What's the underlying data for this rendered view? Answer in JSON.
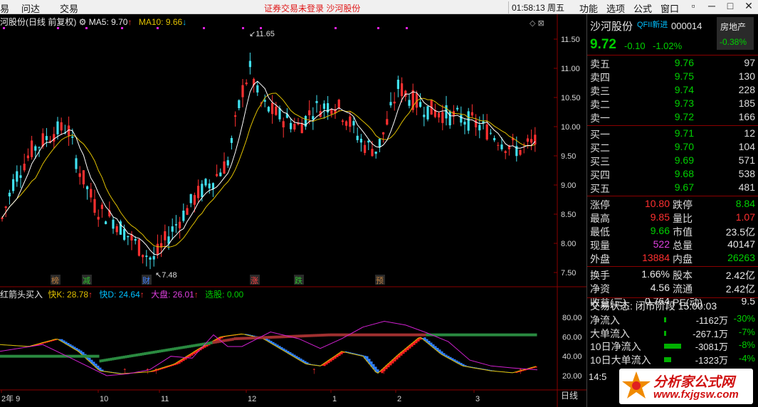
{
  "menu": {
    "items": [
      "问达",
      "交易",
      "功能",
      "选项",
      "公式",
      "窗口"
    ],
    "notice": "证券交易未登录 沙河股份",
    "clock": "01:58:13 周五",
    "win": [
      "▫",
      "─",
      "□",
      "✕"
    ]
  },
  "infobar": {
    "title": "河股份(日线 前复权)",
    "ma5": "MA5: 9.70",
    "ma10": "MA10: 9.66"
  },
  "chart_data": [
    {
      "type": "candlestick",
      "title": "",
      "ylim": [
        7.25,
        11.75
      ],
      "yticks": [
        "11.50",
        "11.00",
        "10.50",
        "10.00",
        "9.50",
        "9.00",
        "8.50",
        "8.00",
        "7.50"
      ],
      "annotations": {
        "high": "11.65",
        "low": "7.48"
      },
      "markers": [
        "榜",
        "减",
        "财",
        "涨",
        "跌",
        "预"
      ],
      "series": [
        {
          "name": "MA5",
          "color": "#ffffff"
        },
        {
          "name": "MA10",
          "color": "#e0c000"
        }
      ]
    },
    {
      "type": "line",
      "title": "",
      "ylim": [
        0,
        100
      ],
      "yticks": [
        "80.00",
        "60.00",
        "40.00",
        "20.00"
      ],
      "series": [
        {
          "name": "快K",
          "value": "28.78"
        },
        {
          "name": "快D",
          "value": "24.64"
        },
        {
          "name": "大盘",
          "value": "26.01"
        },
        {
          "name": "选股",
          "value": "0.00"
        }
      ]
    }
  ],
  "indbar": {
    "title": "红箭头买入",
    "k": "快K: 28.78",
    "d": "快D: 24.64",
    "dp": "大盘: 26.01",
    "xg": "选股: 0.00"
  },
  "xaxis": {
    "labels": [
      "2年 9",
      "10",
      "11",
      "12",
      "1",
      "2",
      "3"
    ],
    "period": "日线"
  },
  "quote": {
    "name": "沙河股份",
    "tag": "QFII新进",
    "code": "000014",
    "sector": "房地产",
    "sector_chg": "-0.38%",
    "price": "9.72",
    "chg": "-0.10",
    "pct": "-1.02%",
    "asks": [
      {
        "k": "卖五",
        "p": "9.76",
        "v": "97"
      },
      {
        "k": "卖四",
        "p": "9.75",
        "v": "130"
      },
      {
        "k": "卖三",
        "p": "9.74",
        "v": "228"
      },
      {
        "k": "卖二",
        "p": "9.73",
        "v": "185"
      },
      {
        "k": "卖一",
        "p": "9.72",
        "v": "166"
      }
    ],
    "bids": [
      {
        "k": "买一",
        "p": "9.71",
        "v": "12"
      },
      {
        "k": "买二",
        "p": "9.70",
        "v": "104"
      },
      {
        "k": "买三",
        "p": "9.69",
        "v": "571"
      },
      {
        "k": "买四",
        "p": "9.68",
        "v": "538"
      },
      {
        "k": "买五",
        "p": "9.67",
        "v": "481"
      }
    ],
    "stats": [
      {
        "k": "涨停",
        "v": "10.80",
        "k2": "跌停",
        "v2": "8.84"
      },
      {
        "k": "最高",
        "v": "9.85",
        "k2": "量比",
        "v2": "1.07"
      },
      {
        "k": "最低",
        "v": "9.66",
        "k2": "市值",
        "v2": "23.5亿"
      },
      {
        "k": "现量",
        "v": "522",
        "k2": "总量",
        "v2": "40147"
      },
      {
        "k": "外盘",
        "v": "13884",
        "k2": "内盘",
        "v2": "26263"
      }
    ],
    "stats2": [
      {
        "k": "换手",
        "v": "1.66%",
        "k2": "股本",
        "v2": "2.42亿"
      },
      {
        "k": "净资",
        "v": "4.56",
        "k2": "流通",
        "v2": "2.42亿"
      },
      {
        "k": "收益(三)",
        "v": "0.764",
        "k2": "PE(动)",
        "v2": "9.5"
      }
    ],
    "status": "交易状态: 闭市阶段 15:00:03",
    "flows": [
      {
        "k": "净流入",
        "v": "-1162万",
        "p": "-30%"
      },
      {
        "k": "大单流入",
        "v": "-267.1万",
        "p": "-7%"
      },
      {
        "k": "10日净流入",
        "v": "-3081万",
        "p": "-8%"
      },
      {
        "k": "10日大单流入",
        "v": "-1323万",
        "p": "-4%"
      }
    ],
    "time": "14:5"
  },
  "logo": {
    "text": "分析家公式网",
    "url": "www.fxjgsw.com"
  }
}
